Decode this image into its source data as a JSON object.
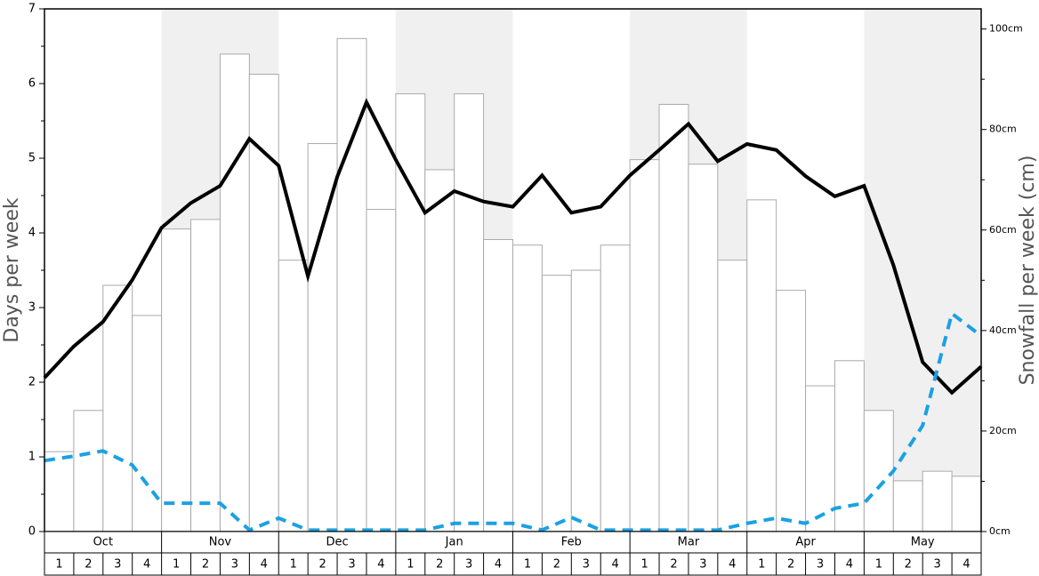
{
  "chart_data": {
    "type": "bar-line",
    "y_label": "Days per week",
    "y2_label": "Snowfall per week (cm)",
    "months": [
      "Oct",
      "Nov",
      "Dec",
      "Jan",
      "Feb",
      "Mar",
      "Apr",
      "May"
    ],
    "shaded_months": [
      1,
      3,
      5,
      7
    ],
    "categories": [
      "1",
      "2",
      "3",
      "4",
      "1",
      "2",
      "3",
      "4",
      "1",
      "2",
      "3",
      "4",
      "1",
      "2",
      "3",
      "4",
      "1",
      "2",
      "3",
      "4",
      "1",
      "2",
      "3",
      "4",
      "1",
      "2",
      "3",
      "4",
      "1",
      "2",
      "3",
      "4"
    ],
    "x": [
      0,
      1,
      2,
      3,
      4,
      5,
      6,
      7,
      8,
      9,
      10,
      11,
      12,
      13,
      14,
      15,
      16,
      17,
      18,
      19,
      20,
      21,
      22,
      23,
      24,
      25,
      26,
      27,
      28,
      29,
      30,
      31,
      32
    ],
    "xlim": [
      0,
      32
    ],
    "ylim": [
      0,
      7
    ],
    "yticks": [
      0,
      1,
      2,
      3,
      4,
      5,
      6,
      7
    ],
    "y2lim": [
      0,
      104
    ],
    "y2ticks": [
      {
        "value": 0,
        "label": "0cm"
      },
      {
        "value": 20,
        "label": "20cm"
      },
      {
        "value": 40,
        "label": "40cm"
      },
      {
        "value": 60,
        "label": "60cm"
      },
      {
        "value": 80,
        "label": "80cm"
      },
      {
        "value": 100,
        "label": "100cm"
      }
    ],
    "series": [
      {
        "kind": "bar",
        "axis": "y2",
        "color": "#ffffff",
        "edge": "#aaaaaa",
        "values": [
          15.9,
          24.1,
          49.0,
          43.0,
          60.2,
          62.1,
          95.0,
          91.0,
          54.0,
          77.2,
          98.1,
          64.1,
          87.1,
          72.0,
          87.1,
          58.1,
          57.0,
          51.0,
          52.0,
          57.0,
          74.0,
          85.0,
          73.1,
          54.0,
          66.0,
          48.0,
          29.0,
          34.0,
          24.1,
          10.1,
          12.0,
          11.0
        ]
      },
      {
        "kind": "line",
        "axis": "y",
        "color": "#000000",
        "dashed": false,
        "values": [
          2.06,
          2.48,
          2.81,
          3.37,
          4.07,
          4.4,
          4.63,
          5.26,
          4.9,
          3.42,
          4.75,
          5.75,
          4.98,
          4.27,
          4.56,
          4.42,
          4.35,
          4.77,
          4.27,
          4.35,
          4.77,
          5.11,
          5.46,
          4.96,
          5.19,
          5.11,
          4.76,
          4.49,
          4.63,
          3.57,
          2.27,
          1.86,
          2.21
        ]
      },
      {
        "kind": "line",
        "axis": "y",
        "color": "#1ba1e2",
        "dashed": true,
        "values": [
          0.95,
          1.01,
          1.08,
          0.89,
          0.38,
          0.38,
          0.38,
          0.02,
          0.18,
          0.02,
          0.02,
          0.02,
          0.02,
          0.02,
          0.11,
          0.11,
          0.11,
          0.02,
          0.19,
          0.02,
          0.02,
          0.02,
          0.02,
          0.02,
          0.11,
          0.18,
          0.11,
          0.31,
          0.38,
          0.81,
          1.42,
          2.92,
          2.62
        ]
      }
    ]
  }
}
